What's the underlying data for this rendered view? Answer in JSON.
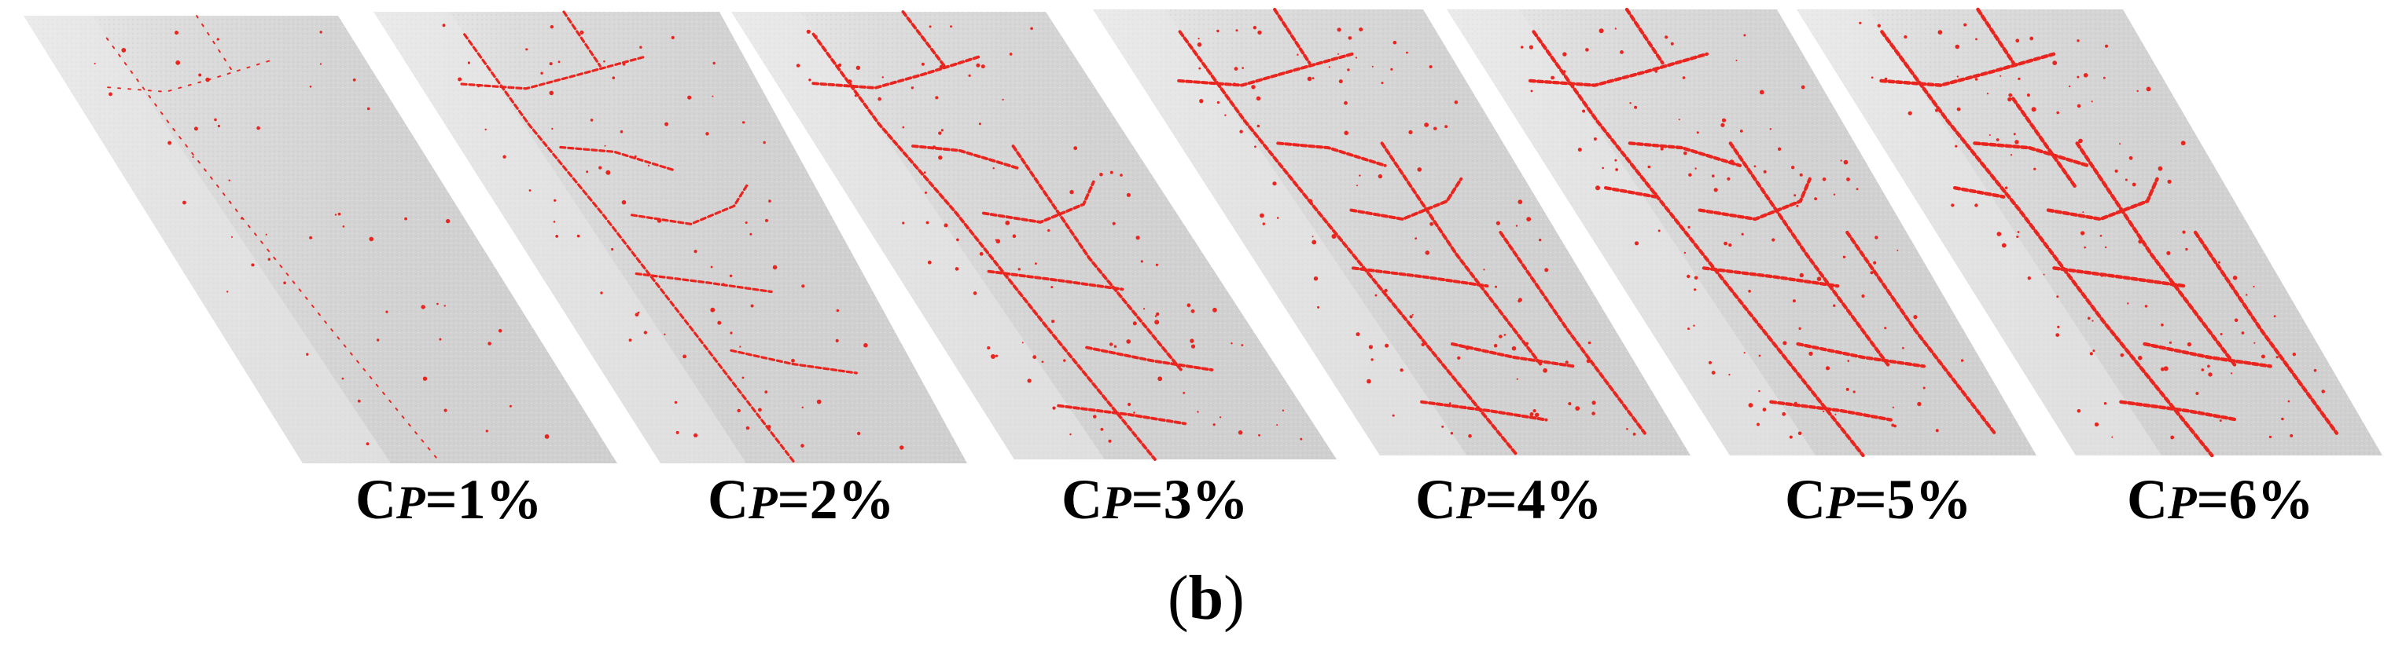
{
  "figure_label": {
    "open": "(",
    "letter": "b",
    "close": ")"
  },
  "colors": {
    "surface": "#d4d4d4",
    "surface_dark": "#c2c2c2",
    "surface_light": "#e9e9e9",
    "crack": "#e8251f"
  },
  "panels": [
    {
      "var": "C",
      "sub": "P",
      "rest": "=1%",
      "crack_density": 0.15
    },
    {
      "var": "C",
      "sub": "P",
      "rest": "=2%",
      "crack_density": 0.55
    },
    {
      "var": "C",
      "sub": "P",
      "rest": "=3%",
      "crack_density": 0.75
    },
    {
      "var": "C",
      "sub": "P",
      "rest": "=4%",
      "crack_density": 0.85
    },
    {
      "var": "C",
      "sub": "P",
      "rest": "=5%",
      "crack_density": 0.92
    },
    {
      "var": "C",
      "sub": "P",
      "rest": "=6%",
      "crack_density": 1.0
    }
  ]
}
